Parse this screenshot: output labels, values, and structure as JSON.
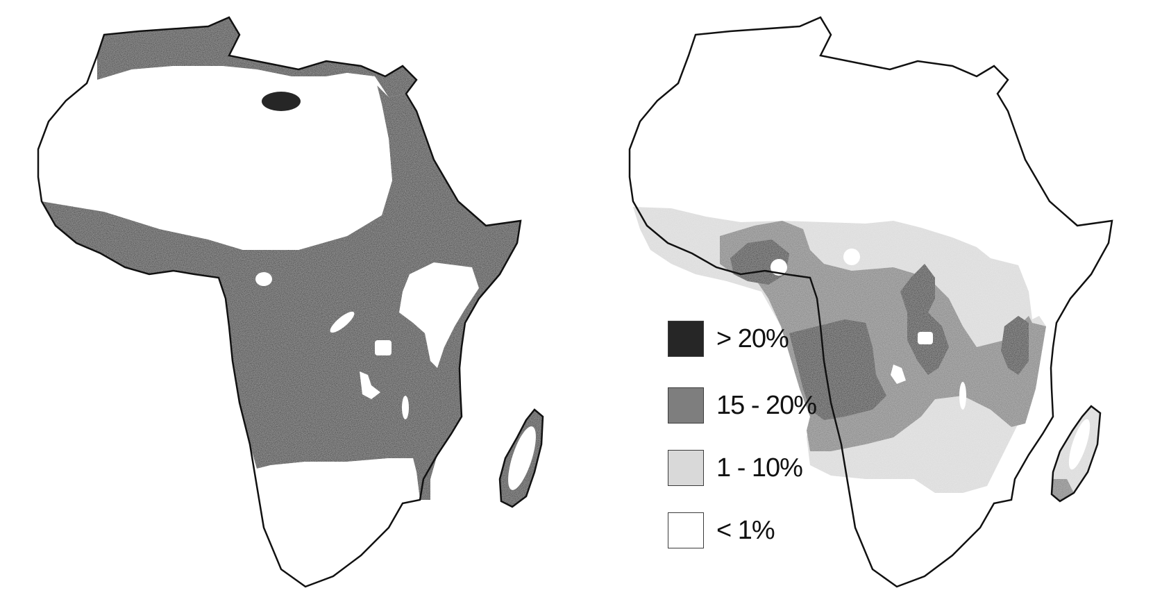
{
  "colors": {
    "gt20": "#262626",
    "p15_20": "#7e7e7e",
    "p1_10": "#d9d9d9",
    "lt1": "#ffffff",
    "outline": "#111111"
  },
  "legend": {
    "items": [
      {
        "key": "gt20",
        "label": "> 20%"
      },
      {
        "key": "p15_20",
        "label": "15 - 20%"
      },
      {
        "key": "p1_10",
        "label": "1 - 10%"
      },
      {
        "key": "lt1",
        "label": "< 1%"
      }
    ]
  }
}
